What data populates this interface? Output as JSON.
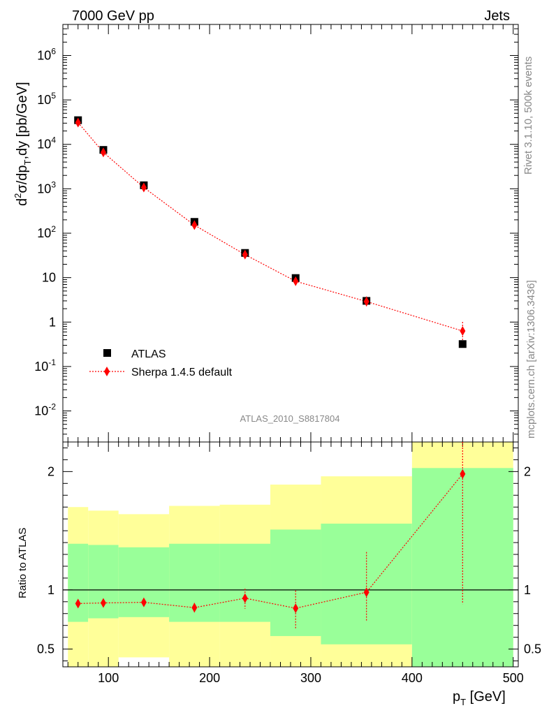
{
  "header": {
    "left": "7000 GeV pp",
    "right": "Jets"
  },
  "side_text": {
    "rivet": "Rivet 3.1.10,  500k events",
    "mcplots": "mcplots.cern.ch [arXiv:1306.3436]"
  },
  "analysis_id": "ATLAS_2010_S8817804",
  "chart_data": [
    {
      "type": "scatter",
      "panel": "main",
      "yscale": "log",
      "ylabel": "d²σ/dp_T,dy [pb/GeV]",
      "xlim": [
        55,
        505
      ],
      "ylim": [
        0.002,
        5000000
      ],
      "y_tick_labels": [
        "10^-2",
        "10^-1",
        "1",
        "10",
        "10^2",
        "10^3",
        "10^4",
        "10^5",
        "10^6"
      ],
      "series": [
        {
          "name": "ATLAS",
          "color": "#000000",
          "marker": "square",
          "x": [
            70,
            95,
            135,
            185,
            235,
            285,
            355,
            450
          ],
          "y": [
            35000,
            7500,
            1200,
            180,
            36,
            9.8,
            3.0,
            0.32
          ]
        },
        {
          "name": "Sherpa 1.4.5 default",
          "color": "#ff0000",
          "marker": "diamond",
          "line": "dotted",
          "x": [
            70,
            95,
            135,
            185,
            235,
            285,
            355,
            450
          ],
          "y": [
            31000,
            6600,
            1070,
            152,
            33,
            8.3,
            2.9,
            0.63
          ],
          "yerr": [
            0.04,
            0.05,
            0.06,
            0.08,
            0.12,
            0.2,
            0.3,
            0.6
          ]
        }
      ],
      "legend_position": "lower-left"
    },
    {
      "type": "scatter",
      "panel": "ratio",
      "ylabel": "Ratio to ATLAS",
      "xlabel": "p_T [GeV]",
      "xlim": [
        55,
        505
      ],
      "ylim": [
        0.35,
        2.25
      ],
      "y_ticks": [
        0.5,
        1,
        2
      ],
      "x_ticks": [
        100,
        200,
        300,
        400,
        500
      ],
      "reference_line": 1,
      "bands": {
        "bin_edges": [
          60,
          80,
          110,
          160,
          210,
          260,
          310,
          400,
          500
        ],
        "green_upper": [
          1.39,
          1.38,
          1.36,
          1.39,
          1.39,
          1.51,
          1.56,
          2.03
        ],
        "green_lower": [
          0.73,
          0.76,
          0.77,
          0.73,
          0.73,
          0.61,
          0.54,
          0.35
        ],
        "yellow_upper": [
          1.7,
          1.67,
          1.64,
          1.71,
          1.72,
          1.89,
          1.96,
          2.4
        ],
        "yellow_lower": [
          0.35,
          0.35,
          0.43,
          0.35,
          0.35,
          0.35,
          0.35,
          0.35
        ],
        "green_color": "#99ff99",
        "yellow_color": "#ffff99"
      },
      "series": [
        {
          "name": "Sherpa 1.4.5 default",
          "color": "#ff0000",
          "x": [
            70,
            95,
            135,
            185,
            235,
            285,
            355,
            450
          ],
          "y": [
            0.885,
            0.89,
            0.895,
            0.85,
            0.93,
            0.845,
            0.98,
            1.98
          ],
          "yerr_low": [
            0.02,
            0.02,
            0.02,
            0.04,
            0.09,
            0.18,
            0.24,
            1.1
          ],
          "yerr_high": [
            0.02,
            0.02,
            0.02,
            0.04,
            0.08,
            0.15,
            0.34,
            0.3
          ]
        }
      ]
    }
  ]
}
